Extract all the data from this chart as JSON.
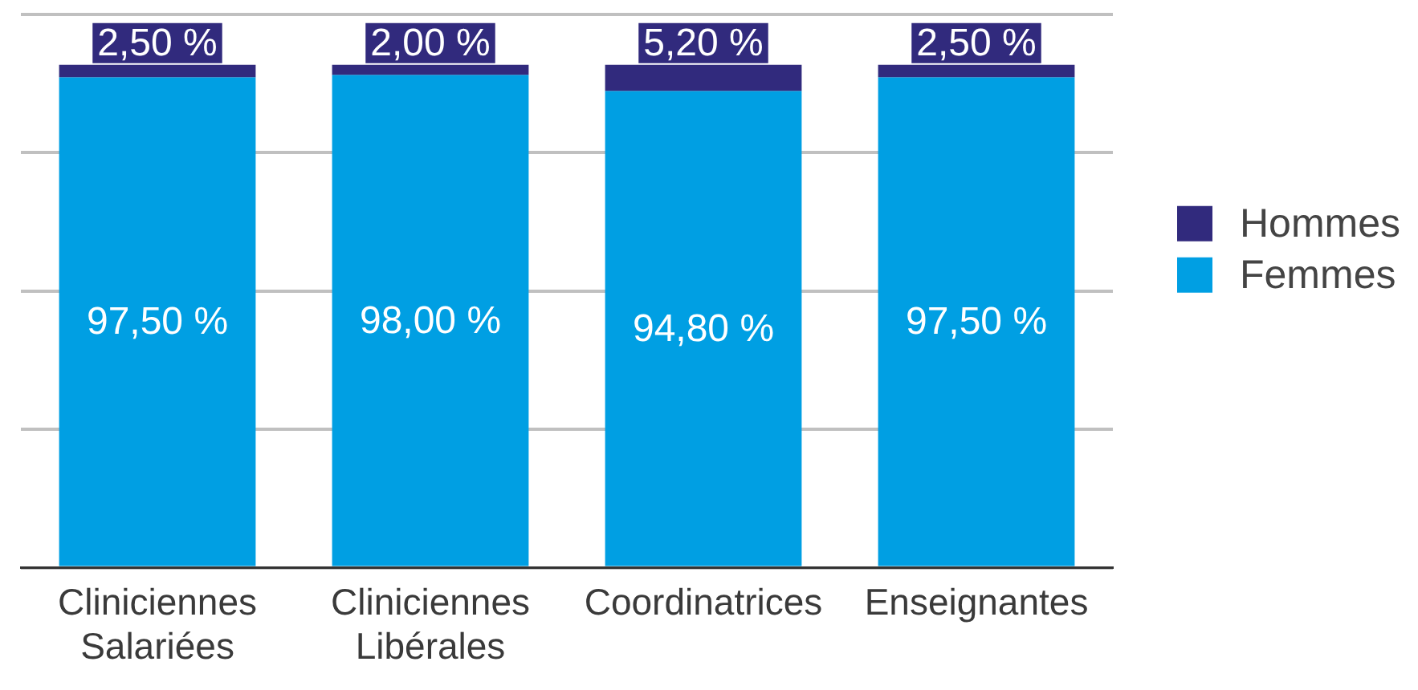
{
  "chart_data": {
    "type": "bar",
    "stacked": true,
    "categories": [
      "Cliniciennes Salariées",
      "Cliniciennes Libérales",
      "Coordinatrices",
      "Enseignantes"
    ],
    "series": [
      {
        "name": "Femmes",
        "color": "#009fe3",
        "values": [
          97.5,
          98,
          94.8,
          97.5
        ],
        "value_labels": [
          "97,50 %",
          "98,00 %",
          "94,80 %",
          "97,50 %"
        ]
      },
      {
        "name": "Hommes",
        "color": "#312a7d",
        "values": [
          2.5,
          2,
          5.2,
          2.5
        ],
        "value_labels": [
          "2,50 %",
          "2,00 %",
          "5,20 %",
          "2,50 %"
        ]
      }
    ],
    "ylim": [
      0,
      110
    ],
    "grid": "y",
    "legend": "right",
    "tick_labels": "x"
  }
}
